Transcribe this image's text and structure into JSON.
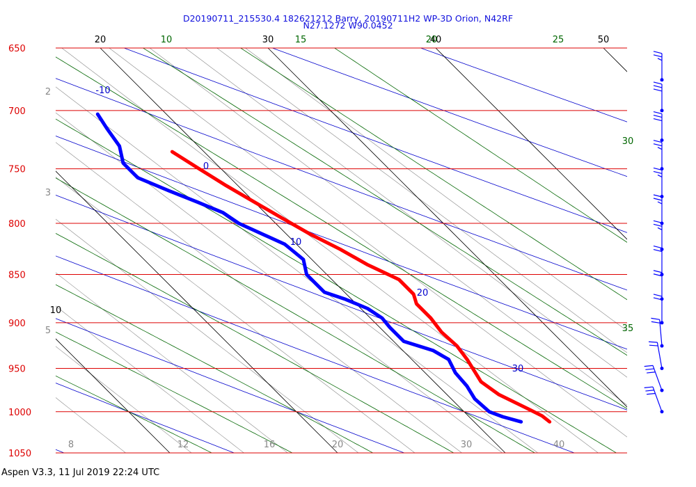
{
  "header": {
    "title": "D20190711_215530.4 182621212 Barry, 20190711H2 WP-3D Orion, N42RF",
    "subtitle": "N27.1272 W90.0452"
  },
  "footer": "Aspen V3.3, 11 Jul 2019  22:24 UTC",
  "colors": {
    "isobar": "#dd0000",
    "isotherm": "#000000",
    "dry_adiabat": "#0000cc",
    "moist_adiabat": "#006600",
    "mixing_ratio": "#888888",
    "temperature": "#ff0000",
    "dewpoint": "#0000ff",
    "wind_barb": "#0000ff",
    "header": "#1010dd"
  },
  "chart_data": {
    "type": "line",
    "chart_kind": "skew-T log-P diagram",
    "ylim": [
      1050,
      650
    ],
    "y_scale": "log-pressure (inverted)",
    "grid": true,
    "pressure_labels": [
      "650",
      "700",
      "750",
      "800",
      "850",
      "900",
      "950",
      "1000",
      "1050"
    ],
    "isotherm_labels": [
      "10",
      "20",
      "30",
      "40",
      "50"
    ],
    "dry_adiabat_labels": [
      "-10",
      "0",
      "10",
      "20",
      "30"
    ],
    "moist_adiabat_labels": [
      "10",
      "15",
      "20",
      "25",
      "30",
      "35"
    ],
    "mixing_ratio_labels": [
      "2",
      "3",
      "5",
      "8",
      "12",
      "16",
      "20",
      "30",
      "40"
    ],
    "series": [
      {
        "name": "temperature",
        "points": [
          [
            1012,
            24.5
          ],
          [
            1005,
            24.4
          ],
          [
            995,
            23.9
          ],
          [
            980,
            23.1
          ],
          [
            965,
            22.8
          ],
          [
            955,
            23.0
          ],
          [
            940,
            23.3
          ],
          [
            925,
            23.5
          ],
          [
            910,
            23.4
          ],
          [
            895,
            23.6
          ],
          [
            880,
            23.6
          ],
          [
            870,
            24.0
          ],
          [
            855,
            24.0
          ],
          [
            840,
            23.0
          ],
          [
            825,
            22.3
          ],
          [
            810,
            21.4
          ],
          [
            795,
            20.7
          ],
          [
            780,
            20.0
          ],
          [
            765,
            19.3
          ],
          [
            750,
            18.7
          ],
          [
            735,
            18.1
          ]
        ]
      },
      {
        "name": "dewpoint",
        "points": [
          [
            1012,
            22.8
          ],
          [
            1006,
            22.0
          ],
          [
            1000,
            21.5
          ],
          [
            985,
            21.4
          ],
          [
            970,
            21.7
          ],
          [
            955,
            21.8
          ],
          [
            940,
            22.2
          ],
          [
            930,
            21.8
          ],
          [
            920,
            20.6
          ],
          [
            905,
            20.6
          ],
          [
            895,
            20.7
          ],
          [
            885,
            20.4
          ],
          [
            875,
            19.6
          ],
          [
            868,
            18.8
          ],
          [
            860,
            18.8
          ],
          [
            850,
            18.8
          ],
          [
            835,
            19.5
          ],
          [
            820,
            19.3
          ],
          [
            800,
            17.8
          ],
          [
            790,
            17.5
          ],
          [
            780,
            16.6
          ],
          [
            770,
            15.6
          ],
          [
            758,
            14.5
          ],
          [
            745,
            14.5
          ],
          [
            730,
            15.3
          ],
          [
            715,
            15.6
          ],
          [
            703,
            15.9
          ]
        ]
      }
    ],
    "wind_barbs": {
      "pressures": [
        1000,
        975,
        950,
        925,
        900,
        875,
        850,
        825,
        800,
        775,
        750,
        725,
        700,
        675
      ],
      "speeds_kt": [
        30,
        30,
        20,
        20,
        20,
        20,
        20,
        25,
        25,
        25,
        25,
        30,
        30,
        25
      ],
      "directions_deg": [
        200,
        200,
        190,
        185,
        180,
        180,
        180,
        180,
        180,
        180,
        180,
        180,
        180,
        180
      ]
    }
  }
}
